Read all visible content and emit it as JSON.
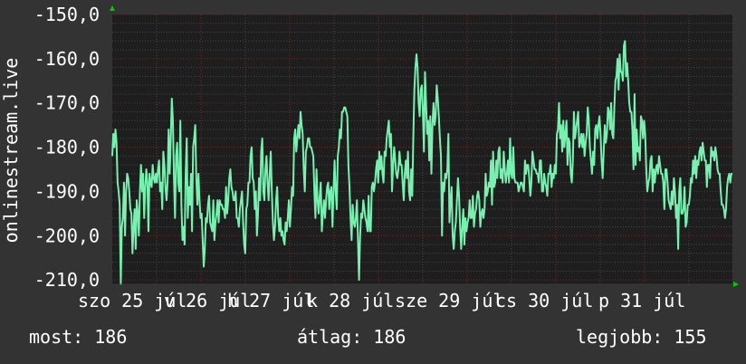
{
  "chart_data": {
    "type": "line",
    "ylabel": "onlinestream.live",
    "ylim": [
      -211,
      -150
    ],
    "y_ticks": [
      -150,
      -160,
      -170,
      -180,
      -190,
      -200,
      -210
    ],
    "y_tick_labels": [
      "-150,0",
      "-160,0",
      "-170,0",
      "-180,0",
      "-190,0",
      "-200,0",
      "-210,0"
    ],
    "x_tick_labels": [
      "szo 25 júl",
      "v 26 júl",
      "h 27 júl",
      "k 28 júl",
      "sze 29 júl",
      "cs 30 júl",
      "p 31 júl"
    ],
    "grid": true,
    "colors": {
      "line": "#77f0b0",
      "background": "#333333",
      "plot": "#1e1e1e",
      "grid_major": "#7a2626",
      "grid_minor": "#454545",
      "arrow": "#00cc00"
    },
    "series": [
      {
        "values": [
          -182,
          -177,
          -180,
          -176,
          -179,
          -188,
          -190,
          -193,
          -211,
          -198,
          -196,
          -188,
          -200,
          -190,
          -186,
          -187,
          -190,
          -194,
          -195,
          -204,
          -198,
          -194,
          -203,
          -192,
          -195,
          -200,
          -190,
          -184,
          -190,
          -186,
          -196,
          -189,
          -185,
          -188,
          -199,
          -186,
          -188,
          -189,
          -184,
          -187,
          -188,
          -186,
          -188,
          -185,
          -183,
          -190,
          -188,
          -194,
          -181,
          -184,
          -189,
          -192,
          -188,
          -176,
          -186,
          -178,
          -169,
          -174,
          -187,
          -196,
          -182,
          -179,
          -188,
          -190,
          -174,
          -193,
          -201,
          -198,
          -202,
          -186,
          -178,
          -196,
          -189,
          -193,
          -186,
          -199,
          -180,
          -178,
          -175,
          -187,
          -193,
          -186,
          -192,
          -196,
          -195,
          -201,
          -207,
          -203,
          -196,
          -197,
          -193,
          -191,
          -197,
          -198,
          -199,
          -192,
          -201,
          -197,
          -195,
          -192,
          -197,
          -192,
          -193,
          -193,
          -194,
          -194,
          -196,
          -189,
          -195,
          -192,
          -187,
          -185,
          -189,
          -190,
          -192,
          -192,
          -190,
          -196,
          -196,
          -198,
          -194,
          -192,
          -190,
          -197,
          -202,
          -204,
          -194,
          -193,
          -188,
          -188,
          -182,
          -180,
          -187,
          -188,
          -194,
          -190,
          -200,
          -195,
          -187,
          -192,
          -181,
          -178,
          -190,
          -192,
          -185,
          -182,
          -188,
          -192,
          -186,
          -181,
          -190,
          -197,
          -201,
          -198,
          -192,
          -189,
          -196,
          -199,
          -196,
          -200,
          -199,
          -201,
          -202,
          -197,
          -199,
          -196,
          -192,
          -198,
          -194,
          -189,
          -191,
          -178,
          -176,
          -181,
          -178,
          -175,
          -178,
          -172,
          -175,
          -177,
          -185,
          -190,
          -181,
          -180,
          -178,
          -178,
          -180,
          -180,
          -181,
          -182,
          -190,
          -196,
          -185,
          -192,
          -195,
          -191,
          -188,
          -199,
          -195,
          -192,
          -196,
          -192,
          -189,
          -188,
          -194,
          -190,
          -189,
          -198,
          -190,
          -183,
          -190,
          -194,
          -182,
          -180,
          -176,
          -178,
          -172,
          -172,
          -171,
          -171,
          -172,
          -173,
          -184,
          -189,
          -196,
          -201,
          -193,
          -197,
          -198,
          -196,
          -192,
          -201,
          -210,
          -200,
          -195,
          -196,
          -192,
          -194,
          -196,
          -197,
          -199,
          -191,
          -199,
          -199,
          -189,
          -188,
          -190,
          -188,
          -185,
          -183,
          -188,
          -181,
          -185,
          -182,
          -186,
          -188,
          -181,
          -182,
          -178,
          -176,
          -174,
          -180,
          -177,
          -190,
          -184,
          -180,
          -183,
          -186,
          -187,
          -185,
          -181,
          -184,
          -184,
          -188,
          -192,
          -186,
          -183,
          -187,
          -181,
          -190,
          -192,
          -185,
          -191,
          -178,
          -167,
          -162,
          -159,
          -162,
          -170,
          -173,
          -167,
          -166,
          -172,
          -181,
          -163,
          -170,
          -177,
          -174,
          -183,
          -173,
          -186,
          -175,
          -170,
          -175,
          -173,
          -166,
          -169,
          -173,
          -178,
          -182,
          -200,
          -188,
          -190,
          -186,
          -187,
          -185,
          -177,
          -197,
          -192,
          -189,
          -200,
          -203,
          -199,
          -197,
          -192,
          -187,
          -191,
          -198,
          -203,
          -198,
          -194,
          -202,
          -196,
          -199,
          -197,
          -196,
          -192,
          -196,
          -196,
          -191,
          -198,
          -195,
          -194,
          -191,
          -190,
          -192,
          -198,
          -195,
          -194,
          -196,
          -194,
          -186,
          -191,
          -190,
          -188,
          -189,
          -183,
          -193,
          -181,
          -189,
          -188,
          -183,
          -187,
          -181,
          -180,
          -187,
          -185,
          -188,
          -181,
          -185,
          -188,
          -186,
          -183,
          -188,
          -178,
          -186,
          -187,
          -180,
          -187,
          -188,
          -188,
          -188,
          -190,
          -189,
          -188,
          -188,
          -189,
          -190,
          -183,
          -186,
          -184,
          -184,
          -187,
          -191,
          -188,
          -181,
          -183,
          -185,
          -185,
          -186,
          -186,
          -188,
          -183,
          -183,
          -190,
          -190,
          -186,
          -188,
          -189,
          -191,
          -186,
          -186,
          -184,
          -189,
          -186,
          -187,
          -184,
          -186,
          -177,
          -176,
          -170,
          -178,
          -175,
          -181,
          -174,
          -180,
          -177,
          -174,
          -184,
          -178,
          -179,
          -186,
          -188,
          -183,
          -172,
          -178,
          -176,
          -174,
          -172,
          -180,
          -179,
          -177,
          -180,
          -177,
          -182,
          -179,
          -177,
          -171,
          -174,
          -180,
          -183,
          -186,
          -181,
          -184,
          -176,
          -175,
          -178,
          -175,
          -173,
          -177,
          -183,
          -187,
          -181,
          -175,
          -179,
          -177,
          -171,
          -172,
          -176,
          -170,
          -177,
          -178,
          -171,
          -165,
          -164,
          -160,
          -167,
          -159,
          -163,
          -163,
          -165,
          -157,
          -156,
          -164,
          -161,
          -165,
          -170,
          -172,
          -172,
          -176,
          -185,
          -168,
          -184,
          -176,
          -181,
          -180,
          -183,
          -173,
          -174,
          -178,
          -174,
          -177,
          -185,
          -190,
          -188,
          -187,
          -183,
          -182,
          -190,
          -185,
          -188,
          -185,
          -184,
          -186,
          -182,
          -184,
          -186,
          -186,
          -188,
          -194,
          -185,
          -185,
          -188,
          -192,
          -193,
          -194,
          -190,
          -193,
          -187,
          -190,
          -196,
          -193,
          -203,
          -190,
          -187,
          -195,
          -195,
          -194,
          -189,
          -198,
          -197,
          -193,
          -193,
          -191,
          -187,
          -188,
          -183,
          -186,
          -182,
          -187,
          -183,
          -184,
          -181,
          -180,
          -183,
          -179,
          -181,
          -183,
          -183,
          -189,
          -184,
          -184,
          -187,
          -180,
          -182,
          -181,
          -183,
          -180,
          -182,
          -185,
          -186,
          -186,
          -190,
          -193,
          -193,
          -194,
          -196,
          -194,
          -189,
          -187,
          -186,
          -188,
          -186,
          -186
        ]
      }
    ]
  },
  "stats": {
    "current": "most: 186",
    "average": "átlag: 186",
    "best": "legjobb: 155"
  }
}
